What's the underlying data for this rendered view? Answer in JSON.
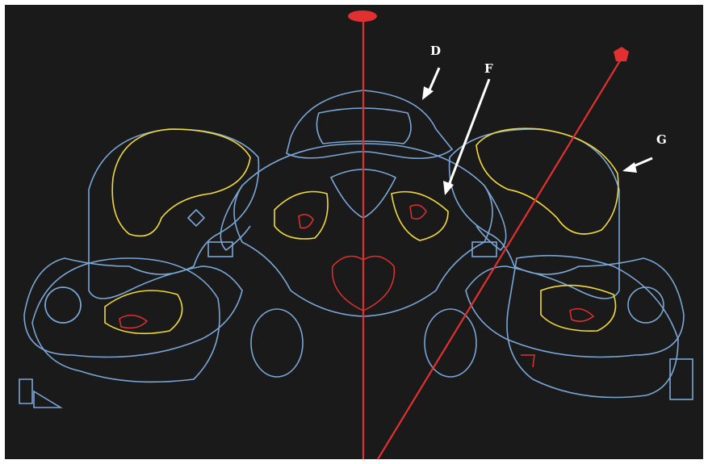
{
  "figure": {
    "background": "#1a1a1a",
    "border": "#ffffff",
    "colors": {
      "bone_mesh": "#7aa6d6",
      "muscle_mesh": "#f2d93a",
      "marker": "#e23030",
      "arrow": "#ffffff"
    },
    "annotations": [
      {
        "id": "D",
        "text": "D"
      },
      {
        "id": "F",
        "text": "F"
      },
      {
        "id": "G",
        "text": "G"
      }
    ]
  }
}
